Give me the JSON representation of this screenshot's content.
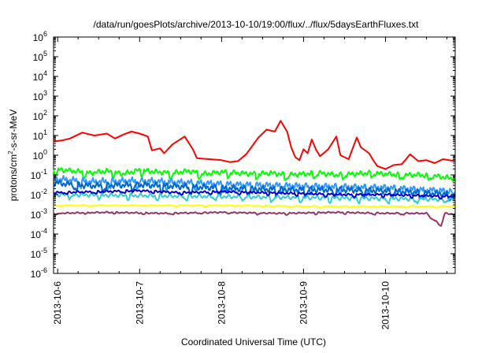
{
  "chart_data": {
    "type": "line",
    "title": "/data/run/goesPlots/archive/2013-10-10/19:00/flux/../flux/5daysEarthFluxes.txt",
    "xlabel": "Coordinated Universal Time (UTC)",
    "ylabel": {
      "base": "protons/cm",
      "sup": "2",
      "rest": "-s-sr-MeV"
    },
    "y_scale": "log",
    "ylim_exp": [
      -6,
      6
    ],
    "y_ticks": [
      {
        "base": "10",
        "exp": "6"
      },
      {
        "base": "10",
        "exp": "5"
      },
      {
        "base": "10",
        "exp": "4"
      },
      {
        "base": "10",
        "exp": "3"
      },
      {
        "base": "10",
        "exp": "2"
      },
      {
        "base": "10",
        "exp": "1"
      },
      {
        "base": "10",
        "exp": "0"
      },
      {
        "base": "10",
        "exp": "-1"
      },
      {
        "base": "10",
        "exp": "-2"
      },
      {
        "base": "10",
        "exp": "-3"
      },
      {
        "base": "10",
        "exp": "-4"
      },
      {
        "base": "10",
        "exp": "-5"
      },
      {
        "base": "10",
        "exp": "-6"
      }
    ],
    "xlim_days": [
      -1.05,
      3.85
    ],
    "x_ticks": [
      {
        "label": "2013-10-6",
        "day": -1
      },
      {
        "label": "2013-10-7",
        "day": 0
      },
      {
        "label": "2013-10-8",
        "day": 1
      },
      {
        "label": "2013-10-9",
        "day": 2
      },
      {
        "label": "2013-10-10",
        "day": 3
      }
    ],
    "grid": false,
    "legend": "none",
    "series": [
      {
        "color": "#ff0000",
        "points": [
          [
            -1.05,
            0.7
          ],
          [
            -0.95,
            0.75
          ],
          [
            -0.85,
            0.85
          ],
          [
            -0.7,
            1.15
          ],
          [
            -0.55,
            1.0
          ],
          [
            -0.4,
            1.1
          ],
          [
            -0.3,
            0.85
          ],
          [
            -0.2,
            1.05
          ],
          [
            -0.1,
            1.2
          ],
          [
            0.0,
            1.1
          ],
          [
            0.1,
            0.95
          ],
          [
            0.15,
            0.25
          ],
          [
            0.25,
            0.35
          ],
          [
            0.3,
            0.1
          ],
          [
            0.4,
            0.55
          ],
          [
            0.55,
            0.95
          ],
          [
            0.65,
            0.3
          ],
          [
            0.7,
            -0.15
          ],
          [
            0.85,
            -0.2
          ],
          [
            1.0,
            -0.25
          ],
          [
            1.1,
            -0.35
          ],
          [
            1.2,
            -0.3
          ],
          [
            1.3,
            0.05
          ],
          [
            1.45,
            0.9
          ],
          [
            1.55,
            1.3
          ],
          [
            1.65,
            1.2
          ],
          [
            1.72,
            1.75
          ],
          [
            1.8,
            1.2
          ],
          [
            1.85,
            0.4
          ],
          [
            1.9,
            -0.1
          ],
          [
            1.95,
            -0.25
          ],
          [
            2.0,
            0.3
          ],
          [
            2.05,
            0.1
          ],
          [
            2.1,
            0.8
          ],
          [
            2.15,
            0.3
          ],
          [
            2.2,
            -0.05
          ],
          [
            2.3,
            0.3
          ],
          [
            2.4,
            0.95
          ],
          [
            2.45,
            0.0
          ],
          [
            2.55,
            -0.2
          ],
          [
            2.65,
            0.9
          ],
          [
            2.7,
            0.4
          ],
          [
            2.8,
            0.1
          ],
          [
            2.85,
            -0.25
          ],
          [
            2.9,
            -0.55
          ],
          [
            3.0,
            -0.7
          ],
          [
            3.1,
            -0.5
          ],
          [
            3.2,
            -0.45
          ],
          [
            3.3,
            0.05
          ],
          [
            3.4,
            -0.3
          ],
          [
            3.5,
            -0.25
          ],
          [
            3.6,
            -0.4
          ],
          [
            3.7,
            -0.2
          ],
          [
            3.85,
            -0.3
          ]
        ]
      },
      {
        "color": "#00ff00",
        "points": [
          [
            -1.05,
            -0.7
          ],
          [
            -0.8,
            -0.8
          ],
          [
            -0.6,
            -0.9
          ],
          [
            -0.4,
            -0.8
          ],
          [
            -0.2,
            -0.95
          ],
          [
            0.0,
            -0.75
          ],
          [
            0.2,
            -0.85
          ],
          [
            0.4,
            -0.9
          ],
          [
            0.6,
            -0.8
          ],
          [
            0.8,
            -0.95
          ],
          [
            1.0,
            -0.85
          ],
          [
            1.2,
            -0.9
          ],
          [
            1.4,
            -0.95
          ],
          [
            1.6,
            -0.9
          ],
          [
            1.8,
            -1.0
          ],
          [
            2.0,
            -0.95
          ],
          [
            2.2,
            -0.9
          ],
          [
            2.4,
            -1.0
          ],
          [
            2.6,
            -0.95
          ],
          [
            2.8,
            -0.9
          ],
          [
            3.0,
            -0.95
          ],
          [
            3.2,
            -1.0
          ],
          [
            3.4,
            -1.0
          ],
          [
            3.6,
            -1.05
          ],
          [
            3.85,
            -1.2
          ]
        ],
        "jitter": 0.28,
        "period": 0.05
      },
      {
        "color": "#3399ff",
        "points": [
          [
            -1.05,
            -1.2
          ],
          [
            -0.6,
            -1.35
          ],
          [
            0.0,
            -1.3
          ],
          [
            0.6,
            -1.4
          ],
          [
            1.2,
            -1.5
          ],
          [
            1.8,
            -1.55
          ],
          [
            2.4,
            -1.6
          ],
          [
            3.0,
            -1.65
          ],
          [
            3.85,
            -1.85
          ]
        ],
        "jitter": 0.4,
        "period": 0.04
      },
      {
        "color": "#0066cc",
        "points": [
          [
            -1.05,
            -1.4
          ],
          [
            -0.6,
            -1.55
          ],
          [
            0.0,
            -1.5
          ],
          [
            0.6,
            -1.6
          ],
          [
            1.2,
            -1.7
          ],
          [
            1.8,
            -1.75
          ],
          [
            2.4,
            -1.75
          ],
          [
            3.0,
            -1.8
          ],
          [
            3.85,
            -2.0
          ]
        ],
        "jitter": 0.35,
        "period": 0.045
      },
      {
        "color": "#33cccc",
        "points": [
          [
            -1.05,
            -2.0
          ],
          [
            0.0,
            -2.05
          ],
          [
            1.0,
            -2.1
          ],
          [
            2.0,
            -2.15
          ],
          [
            3.0,
            -2.2
          ],
          [
            3.85,
            -2.25
          ]
        ],
        "jitter": 0.22,
        "period": 0.06
      },
      {
        "color": "#0000cc",
        "points": [
          [
            -1.05,
            -1.9
          ],
          [
            -0.5,
            -1.85
          ],
          [
            0.0,
            -1.8
          ],
          [
            0.5,
            -1.9
          ],
          [
            1.0,
            -1.85
          ],
          [
            1.5,
            -1.9
          ],
          [
            2.0,
            -1.95
          ],
          [
            2.5,
            -2.0
          ],
          [
            3.0,
            -2.0
          ],
          [
            3.85,
            -2.1
          ]
        ],
        "jitter": 0.12,
        "period": 0.05
      },
      {
        "color": "#ffff00",
        "points": [
          [
            -1.05,
            -2.55
          ],
          [
            0.0,
            -2.55
          ],
          [
            1.0,
            -2.55
          ],
          [
            2.0,
            -2.6
          ],
          [
            3.0,
            -2.6
          ],
          [
            3.85,
            -2.6
          ]
        ],
        "jitter": 0.05,
        "period": 0.2
      },
      {
        "color": "#993366",
        "points": [
          [
            -1.05,
            -2.95
          ],
          [
            -0.4,
            -2.9
          ],
          [
            0.3,
            -2.95
          ],
          [
            1.0,
            -2.9
          ],
          [
            1.7,
            -2.95
          ],
          [
            2.4,
            -2.9
          ],
          [
            3.0,
            -2.95
          ],
          [
            3.5,
            -2.95
          ],
          [
            3.68,
            -3.6
          ],
          [
            3.72,
            -2.95
          ],
          [
            3.85,
            -3.0
          ]
        ],
        "jitter": 0.08,
        "period": 0.06
      }
    ]
  }
}
